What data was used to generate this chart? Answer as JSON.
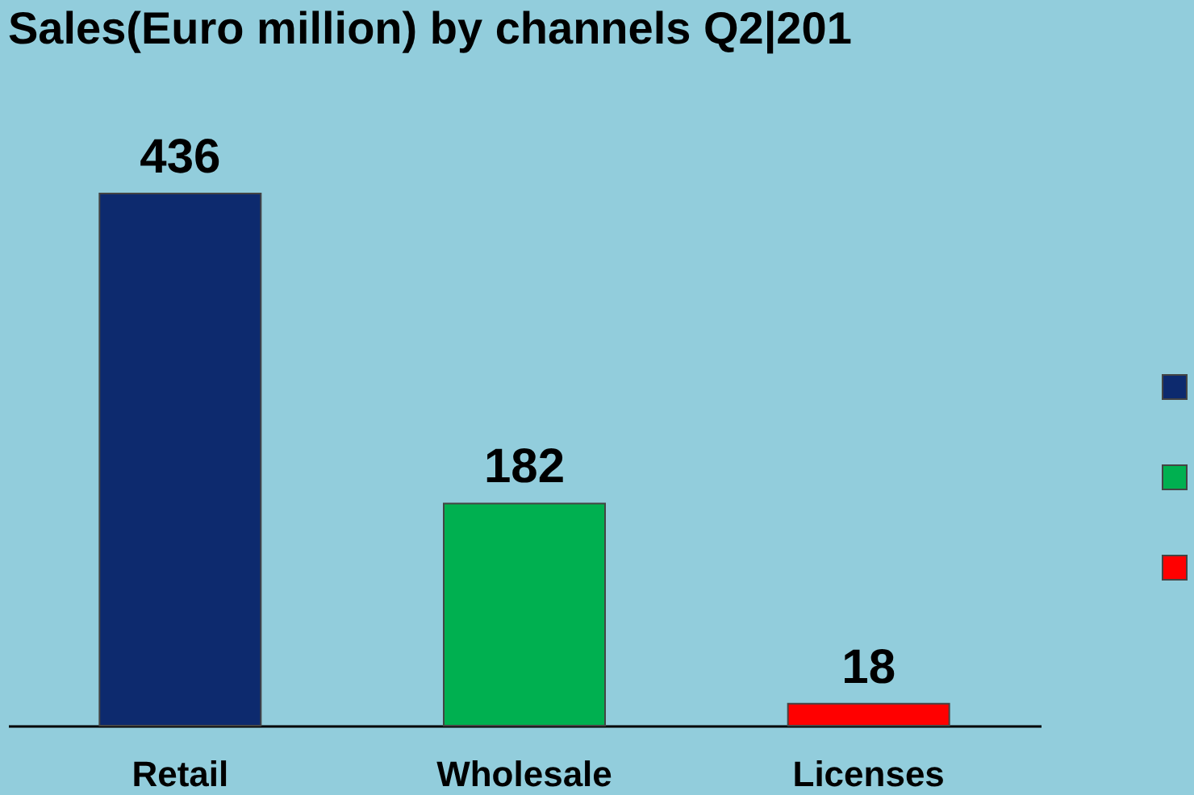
{
  "chart_data": {
    "type": "bar",
    "title": "Sales(Euro million) by channels Q2|201",
    "categories": [
      "Retail",
      "Wholesale",
      "Licenses"
    ],
    "values": [
      436,
      182,
      18
    ],
    "colors": [
      "#0d2a6e",
      "#00b050",
      "#ff0000"
    ],
    "data_labels": true
  }
}
